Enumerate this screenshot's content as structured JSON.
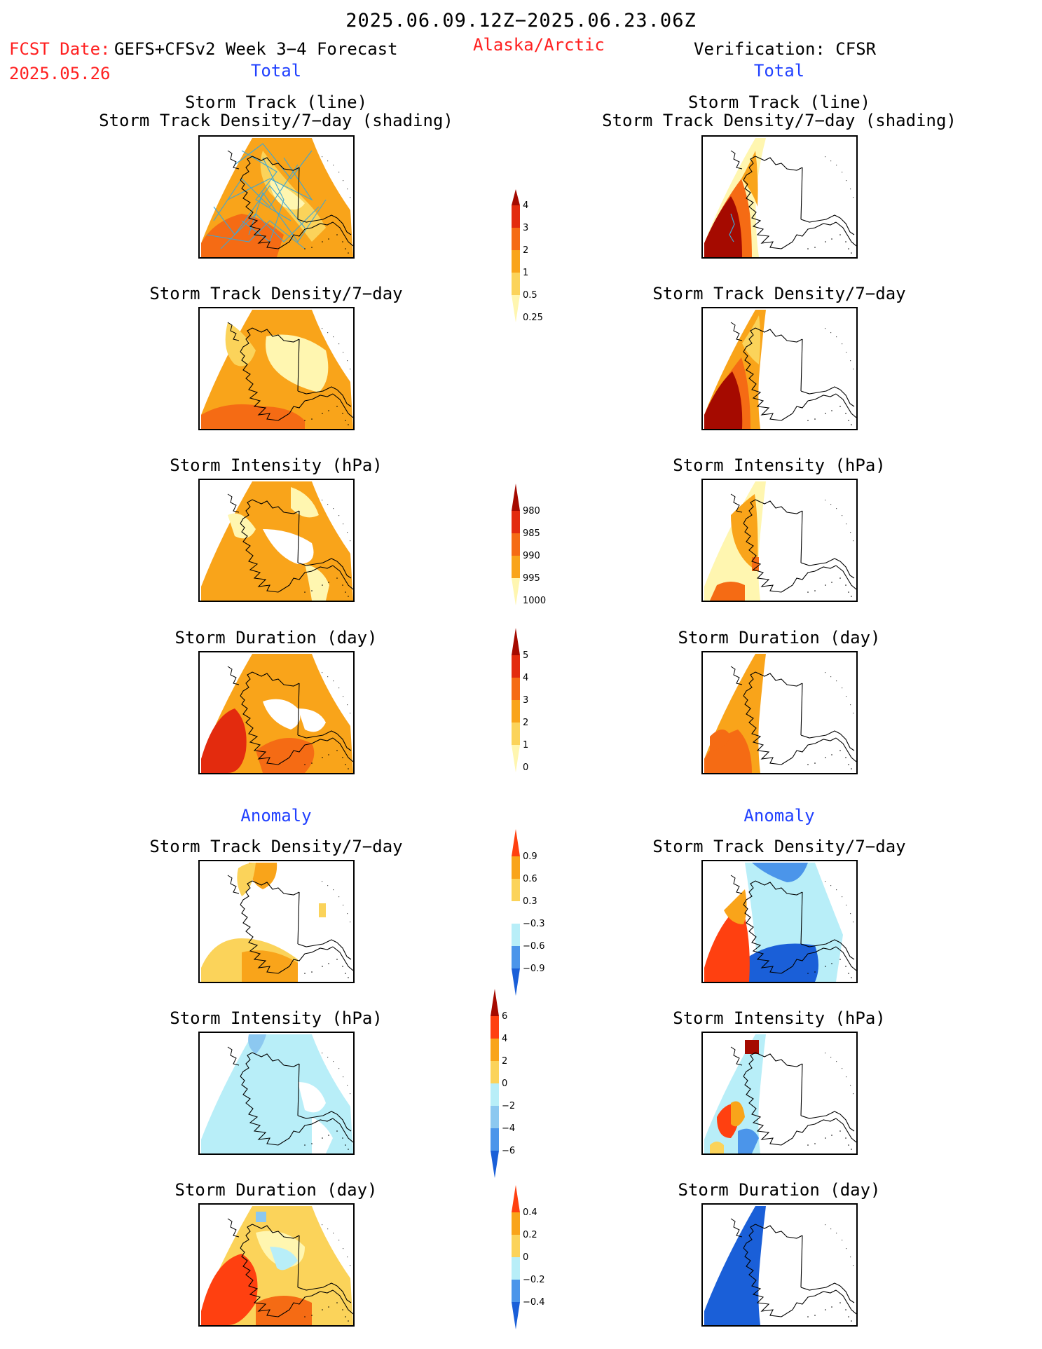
{
  "header": {
    "date_range": "2025.06.09.12Z−2025.06.23.06Z",
    "fcst_label": "FCST Date:",
    "model_label": "GEFS+CFSv2 Week 3−4 Forecast",
    "fcst_date": "2025.05.26",
    "region": "Alaska/Arctic",
    "verification": "Verification: CFSR"
  },
  "sections": {
    "total": "Total",
    "anomaly": "Anomaly"
  },
  "panel_titles": {
    "track_line": "Storm Track (line)",
    "track_shading": "Storm Track Density/7−day (shading)",
    "density": "Storm Track Density/7−day",
    "intensity": "Storm Intensity (hPa)",
    "duration": "Storm Duration (day)"
  },
  "colors": {
    "c0": "#fff6b0",
    "c1": "#fbd35a",
    "c2": "#f9a41a",
    "c3": "#f56b14",
    "c4": "#e32b0e",
    "c5": "#a50a00",
    "b1": "#b8eef8",
    "b2": "#8cc8f0",
    "b3": "#4b95ea",
    "b4": "#1a5fd8",
    "track": "#3fa6d4"
  },
  "chart_data": [
    {
      "type": "heatmap",
      "label": "density-colorbar",
      "levels": [
        "0.25",
        "0.5",
        "1",
        "2",
        "3",
        "4"
      ],
      "colors": [
        "#fff6b0",
        "#fbd35a",
        "#f9a41a",
        "#f56b14",
        "#e32b0e",
        "#a50a00"
      ]
    },
    {
      "type": "heatmap",
      "label": "intensity-colorbar",
      "levels": [
        "1000",
        "995",
        "990",
        "985",
        "980"
      ],
      "colors": [
        "#fff6b0",
        "#f9a41a",
        "#f56b14",
        "#e32b0e",
        "#a50a00"
      ]
    },
    {
      "type": "heatmap",
      "label": "duration-colorbar",
      "levels": [
        "0",
        "1",
        "2",
        "3",
        "4",
        "5"
      ],
      "colors": [
        "#fff6b0",
        "#fbd35a",
        "#f9a41a",
        "#f56b14",
        "#e32b0e",
        "#a50a00"
      ]
    },
    {
      "type": "heatmap",
      "label": "density-anomaly-colorbar",
      "levels": [
        "−0.9",
        "−0.6",
        "−0.3",
        "0.3",
        "0.6",
        "0.9"
      ],
      "colors": [
        "#1a5fd8",
        "#4b95ea",
        "#b8eef8",
        "#ffffff",
        "#fbd35a",
        "#f9a41a",
        "#ff4010"
      ]
    },
    {
      "type": "heatmap",
      "label": "intensity-anomaly-colorbar",
      "levels": [
        "−6",
        "−4",
        "−2",
        "0",
        "2",
        "4",
        "6"
      ],
      "colors": [
        "#1a5fd8",
        "#4b95ea",
        "#8cc8f0",
        "#b8eef8",
        "#fbd35a",
        "#f9a41a",
        "#ff4010",
        "#a50a00"
      ]
    },
    {
      "type": "heatmap",
      "label": "duration-anomaly-colorbar",
      "levels": [
        "−0.4",
        "−0.2",
        "0",
        "0.2",
        "0.4"
      ],
      "colors": [
        "#1a5fd8",
        "#4b95ea",
        "#b8eef8",
        "#fbd35a",
        "#f9a41a",
        "#ff4010"
      ]
    }
  ]
}
